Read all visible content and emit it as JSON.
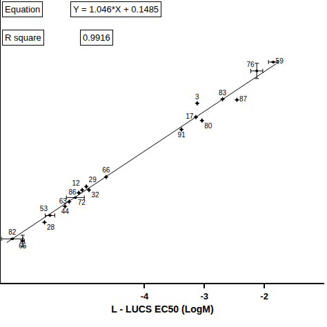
{
  "chart_data": {
    "type": "scatter",
    "x_label": "L - LUCS EC50 (LogM)",
    "annotations": [
      [
        "Equation",
        "Y = 1.046*X + 0.1485"
      ],
      [
        "R square",
        "0.9916"
      ]
    ],
    "fit": {
      "slope": 1.046,
      "intercept": 0.1485,
      "x_range": [
        -6.3,
        -1.8
      ]
    },
    "labels": [
      "82",
      "65",
      "28",
      "53",
      "44",
      "63",
      "72",
      "86",
      "12",
      "29",
      "32",
      "66",
      "91",
      "17",
      "80",
      "3",
      "83",
      "87",
      "76",
      "59"
    ],
    "x": [
      -6.206,
      -6.034,
      -5.669,
      -5.577,
      -5.326,
      -5.257,
      -5.154,
      -5.097,
      -5.04,
      -4.971,
      -4.926,
      -4.64,
      -3.383,
      -3.143,
      -3.04,
      -3.12,
      -2.697,
      -2.457,
      -2.126,
      -1.851
    ],
    "values": [
      -6.343,
      -6.397,
      -5.909,
      -5.728,
      -5.492,
      -5.366,
      -5.257,
      -5.13,
      -5.058,
      -4.967,
      -5.058,
      -4.714,
      -3.465,
      -3.139,
      -3.23,
      -2.777,
      -2.668,
      -2.686,
      -1.926,
      -1.691
    ],
    "x_error": [
      0.18,
      0.03,
      null,
      0.08,
      null,
      null,
      0.15,
      null,
      null,
      null,
      null,
      null,
      null,
      null,
      null,
      null,
      null,
      null,
      0.1,
      0.08
    ],
    "y_error": [
      null,
      0.15,
      null,
      null,
      null,
      null,
      null,
      null,
      null,
      null,
      null,
      null,
      null,
      null,
      null,
      null,
      null,
      null,
      0.2,
      null
    ],
    "color": "#000000",
    "xlim": [
      -6.4,
      -1.0
    ],
    "ylim": [
      -7.5,
      -0.06
    ],
    "xticks": [
      -4,
      -3,
      -2
    ],
    "yticks": [],
    "grid": false,
    "tick_labels": "x"
  }
}
